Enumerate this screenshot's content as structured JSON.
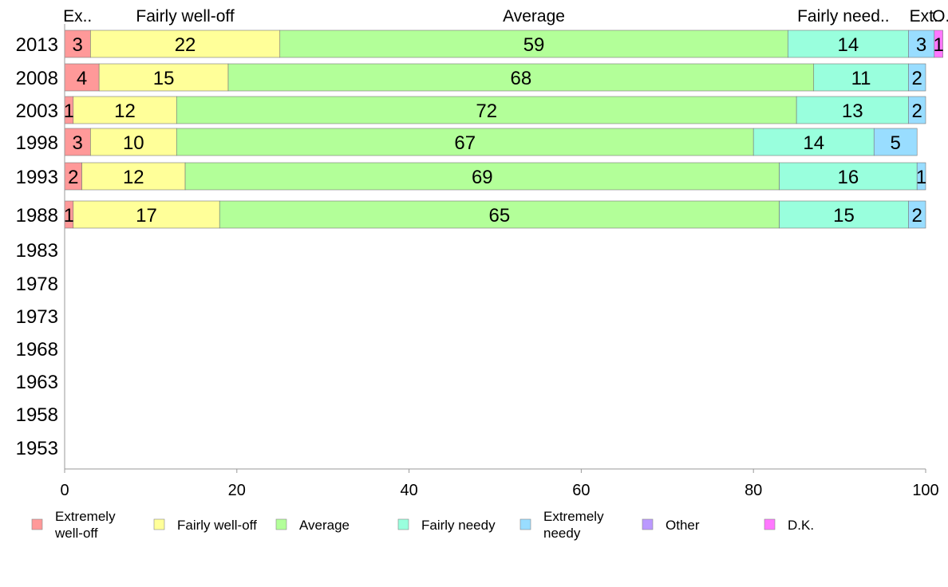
{
  "chart_data": {
    "type": "bar",
    "orientation": "horizontal",
    "stacked": true,
    "title": "",
    "xlabel": "",
    "ylabel": "",
    "xlim": [
      0,
      100
    ],
    "x_ticks": [
      "0",
      "20",
      "40",
      "60",
      "80",
      "100"
    ],
    "grid": false,
    "legend_placement": "bottom",
    "categories": [
      "2013",
      "2008",
      "2003",
      "1998",
      "1993",
      "1988",
      "1983",
      "1978",
      "1973",
      "1968",
      "1963",
      "1958",
      "1953"
    ],
    "series": [
      {
        "name": "Extremely\nwell-off",
        "short": "Ex..",
        "color": "#ff9999",
        "values": [
          3,
          4,
          1,
          3,
          2,
          1,
          null,
          null,
          null,
          null,
          null,
          null,
          null
        ]
      },
      {
        "name": "Fairly well-off",
        "short": "Fairly well-off",
        "color": "#ffff99",
        "values": [
          22,
          15,
          12,
          10,
          12,
          17,
          null,
          null,
          null,
          null,
          null,
          null,
          null
        ]
      },
      {
        "name": "Average",
        "short": "Average",
        "color": "#b3ff99",
        "values": [
          59,
          68,
          72,
          67,
          69,
          65,
          null,
          null,
          null,
          null,
          null,
          null,
          null
        ]
      },
      {
        "name": "Fairly needy",
        "short": "Fairly need..",
        "color": "#99ffdd",
        "values": [
          14,
          11,
          13,
          14,
          16,
          15,
          null,
          null,
          null,
          null,
          null,
          null,
          null
        ]
      },
      {
        "name": "Extremely\nneedy",
        "short": "Ext..",
        "color": "#99ddff",
        "values": [
          3,
          2,
          2,
          5,
          1,
          2,
          null,
          null,
          null,
          null,
          null,
          null,
          null
        ]
      },
      {
        "name": "Other",
        "short": "",
        "color": "#bb99ff",
        "values": [
          0,
          0,
          0,
          0,
          0,
          0,
          null,
          null,
          null,
          null,
          null,
          null,
          null
        ]
      },
      {
        "name": "D.K.",
        "short": "O..",
        "color": "#ff77ff",
        "values": [
          1,
          0,
          0,
          0,
          0,
          0,
          null,
          null,
          null,
          null,
          null,
          null,
          null
        ]
      }
    ]
  }
}
